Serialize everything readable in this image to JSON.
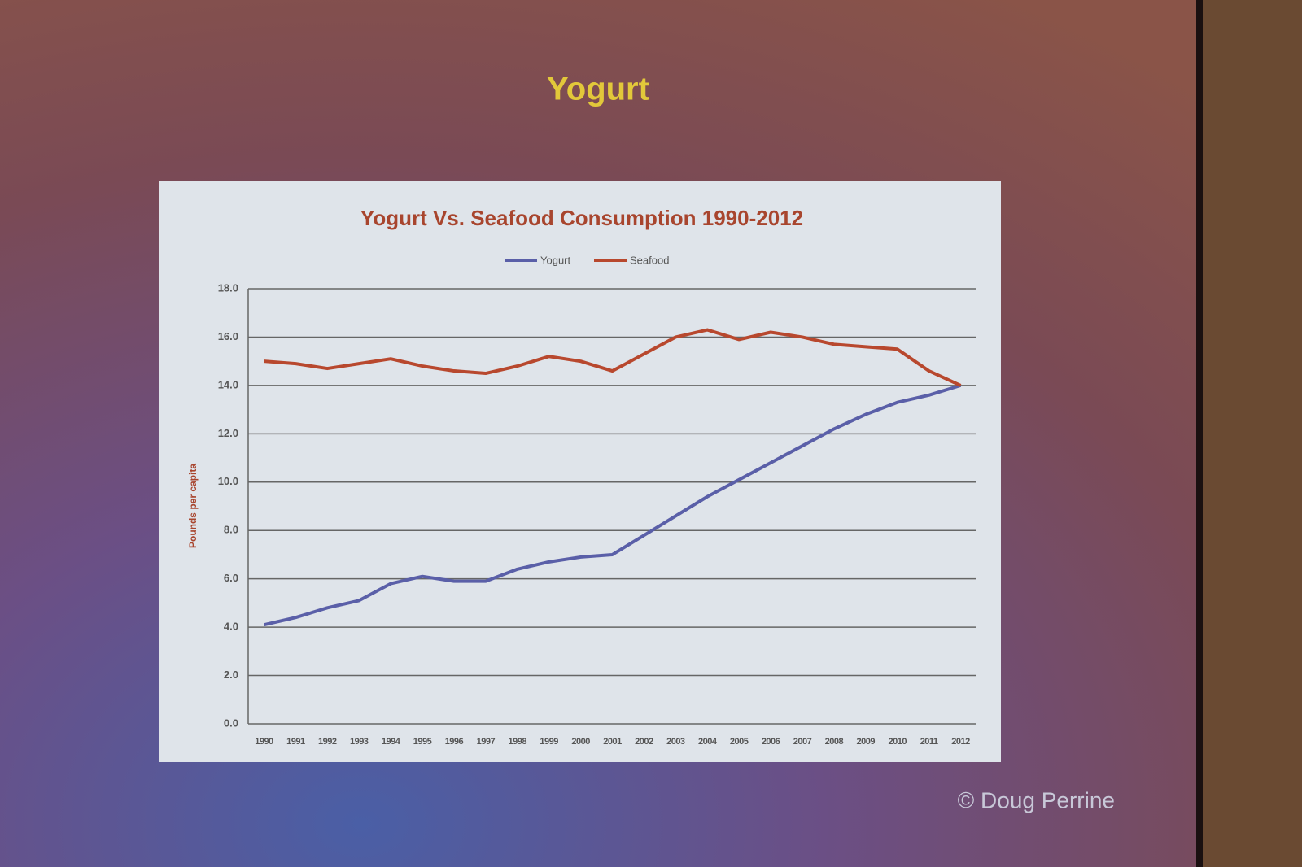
{
  "slide_title": "Yogurt",
  "credit": "© Doug Perrine",
  "chart_data": {
    "type": "line",
    "title": "Yogurt Vs. Seafood Consumption 1990-2012",
    "y_label": "Pounds per capita",
    "categories": [
      "1990",
      "1991",
      "1992",
      "1993",
      "1994",
      "1995",
      "1996",
      "1997",
      "1998",
      "1999",
      "2000",
      "2001",
      "2002",
      "2003",
      "2004",
      "2005",
      "2006",
      "2007",
      "2008",
      "2009",
      "2010",
      "2011",
      "2012"
    ],
    "series": [
      {
        "name": "Yogurt",
        "color": "#5a5fa8",
        "values": [
          4.1,
          4.4,
          4.8,
          5.1,
          5.8,
          6.1,
          5.9,
          5.9,
          6.4,
          6.7,
          6.9,
          7.0,
          7.8,
          8.6,
          9.4,
          10.1,
          10.8,
          11.5,
          12.2,
          12.8,
          13.3,
          13.6,
          14.0
        ]
      },
      {
        "name": "Seafood",
        "color": "#b8482e",
        "values": [
          15.0,
          14.9,
          14.7,
          14.9,
          15.1,
          14.8,
          14.6,
          14.5,
          14.8,
          15.2,
          15.0,
          14.6,
          15.3,
          16.0,
          16.3,
          15.9,
          16.2,
          16.0,
          15.7,
          15.6,
          15.5,
          14.6,
          14.0
        ]
      }
    ],
    "ylim": [
      0,
      18
    ],
    "yticks": [
      {
        "value": 0,
        "label": "0.0"
      },
      {
        "value": 2,
        "label": "2.0"
      },
      {
        "value": 4,
        "label": "4.0"
      },
      {
        "value": 6,
        "label": "6.0"
      },
      {
        "value": 8,
        "label": "8.0"
      },
      {
        "value": 10,
        "label": "10.0"
      },
      {
        "value": 12,
        "label": "12.0"
      },
      {
        "value": 14,
        "label": "14.0"
      },
      {
        "value": 16,
        "label": "16.0"
      },
      {
        "value": 18,
        "label": "18.0"
      }
    ],
    "grid": true,
    "legend": "top"
  }
}
